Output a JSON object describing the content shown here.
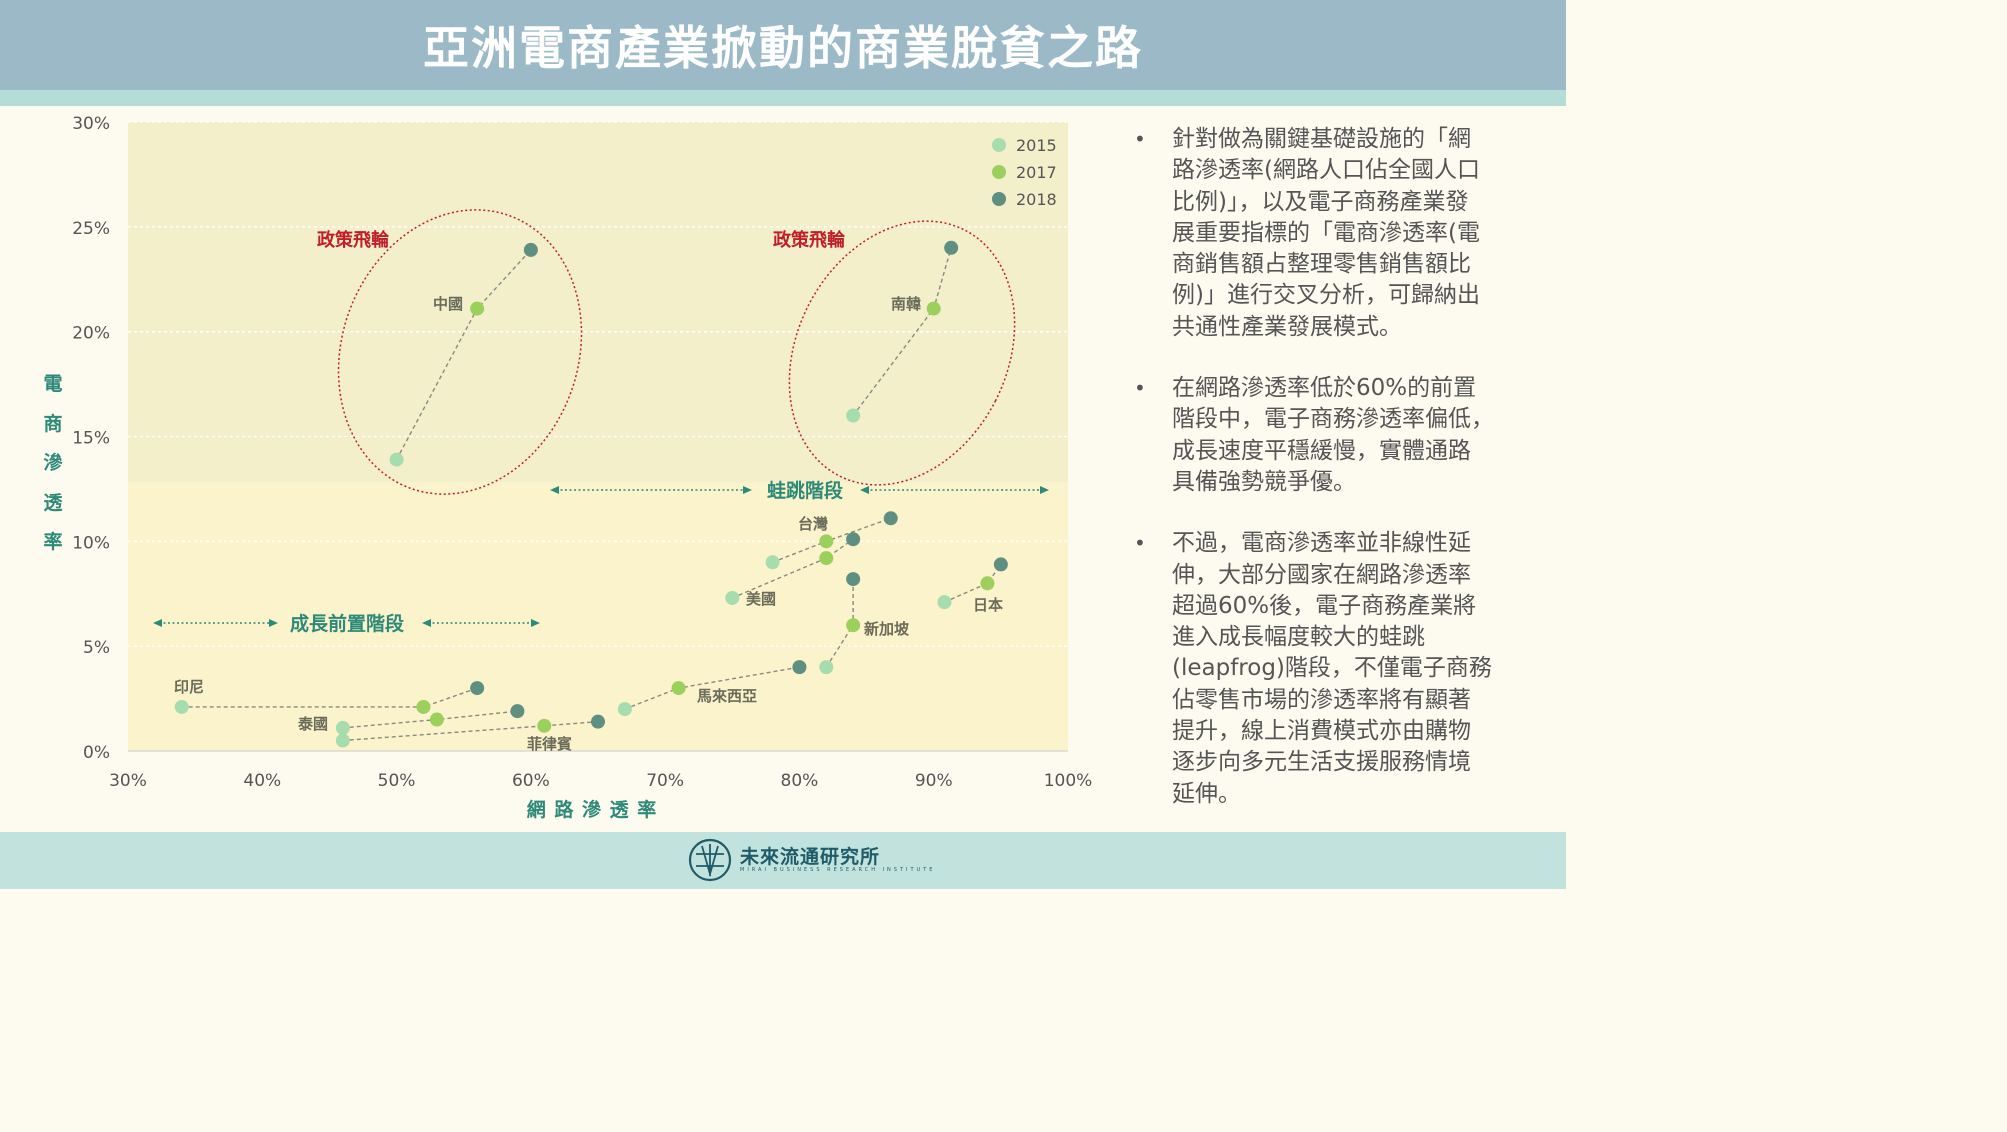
{
  "title": "亞洲電商產業掀動的商業脫貧之路",
  "colors": {
    "banner": "#9cb9c7",
    "upper_zone": "#f3efcb",
    "lower_zone": "#fbf3cc",
    "c2015": "#a7dcae",
    "c2017": "#9ccf5c",
    "c2018": "#5e8f80",
    "policy_red": "#c01f2a",
    "axis_teal": "#2e8a78"
  },
  "chart_data": {
    "type": "scatter",
    "xlabel": "網 路 滲 透 率",
    "ylabel": "電商滲透率",
    "ylabel_chars": [
      "電",
      "商",
      "滲",
      "透",
      "率"
    ],
    "xlim": [
      0.3,
      1.0
    ],
    "ylim": [
      0,
      0.3
    ],
    "x_ticks": [
      "30%",
      "40%",
      "50%",
      "60%",
      "70%",
      "80%",
      "90%",
      "100%"
    ],
    "x_tick_values": [
      0.3,
      0.4,
      0.5,
      0.6,
      0.7,
      0.8,
      0.9,
      1.0
    ],
    "y_ticks": [
      "0%",
      "5%",
      "10%",
      "15%",
      "20%",
      "25%",
      "30%"
    ],
    "y_tick_values": [
      0,
      0.05,
      0.1,
      0.15,
      0.2,
      0.25,
      0.3
    ],
    "grid": true,
    "legend_position": "top-right",
    "series_years": [
      "2015",
      "2017",
      "2018"
    ],
    "legend": [
      {
        "label": "2015",
        "color": "#a7dcae"
      },
      {
        "label": "2017",
        "color": "#9ccf5c"
      },
      {
        "label": "2018",
        "color": "#5e8f80"
      }
    ],
    "countries": [
      {
        "name": "中國",
        "points": [
          [
            0.5,
            0.139
          ],
          [
            0.56,
            0.211
          ],
          [
            0.6,
            0.239
          ]
        ]
      },
      {
        "name": "南韓",
        "points": [
          [
            0.84,
            0.16
          ],
          [
            0.9,
            0.211
          ],
          [
            0.913,
            0.24
          ]
        ]
      },
      {
        "name": "台灣",
        "points": [
          [
            0.78,
            0.09
          ],
          [
            0.82,
            0.1
          ],
          [
            0.868,
            0.111
          ]
        ]
      },
      {
        "name": "美國",
        "points": [
          [
            0.75,
            0.073
          ],
          [
            0.82,
            0.092
          ],
          [
            0.84,
            0.101
          ]
        ]
      },
      {
        "name": "新加坡",
        "points": [
          [
            0.82,
            0.04
          ],
          [
            0.84,
            0.06
          ],
          [
            0.84,
            0.082
          ]
        ]
      },
      {
        "name": "日本",
        "points": [
          [
            0.908,
            0.071
          ],
          [
            0.94,
            0.08
          ],
          [
            0.95,
            0.089
          ]
        ]
      },
      {
        "name": "馬來西亞",
        "points": [
          [
            0.67,
            0.02
          ],
          [
            0.71,
            0.03
          ],
          [
            0.8,
            0.04
          ]
        ]
      },
      {
        "name": "印尼",
        "points": [
          [
            0.34,
            0.021
          ],
          [
            0.52,
            0.021
          ],
          [
            0.56,
            0.03
          ]
        ]
      },
      {
        "name": "泰國",
        "points": [
          [
            0.46,
            0.011
          ],
          [
            0.53,
            0.015
          ],
          [
            0.59,
            0.019
          ]
        ]
      },
      {
        "name": "菲律賓",
        "points": [
          [
            0.46,
            0.005
          ],
          [
            0.61,
            0.012
          ],
          [
            0.65,
            0.014
          ]
        ]
      }
    ],
    "zone_boundary_y": 0.128,
    "annotations": {
      "policy_left": "政策飛輪",
      "policy_right": "政策飛輪",
      "leapfrog": "蛙跳階段",
      "preliminary": "成長前置階段"
    }
  },
  "bullets": [
    {
      "lines": [
        "針對做為關鍵基礎設施的「網",
        "路滲透率(網路人口佔全國人口",
        "比例)」，以及電子商務產業發",
        "展重要指標的「電商滲透率(電",
        "商銷售額占整理零售銷售額比",
        "例)」進行交叉分析，可歸納出",
        "共通性產業發展模式。"
      ]
    },
    {
      "lines": [
        "在網路滲透率低於60%的前置",
        "階段中，電子商務滲透率偏低，",
        "成長速度平穩緩慢，實體通路",
        "具備強勢競爭優。"
      ]
    },
    {
      "lines": [
        "不過，電商滲透率並非線性延",
        "伸，大部分國家在網路滲透率",
        "超過60%後，電子商務產業將",
        "進入成長幅度較大的蛙跳",
        "(leapfrog)階段，不僅電子商務",
        "佔零售市場的滲透率將有顯著",
        "提升，線上消費模式亦由購物",
        "逐步向多元生活支援服務情境",
        "延伸。"
      ]
    }
  ],
  "bullet_symbol": "•",
  "footer": {
    "name": "未來流通研究所",
    "subname": "MIRAI BUSINESS RESEARCH INSTITUTE",
    "logo_icon": "mirai-logo-icon"
  }
}
